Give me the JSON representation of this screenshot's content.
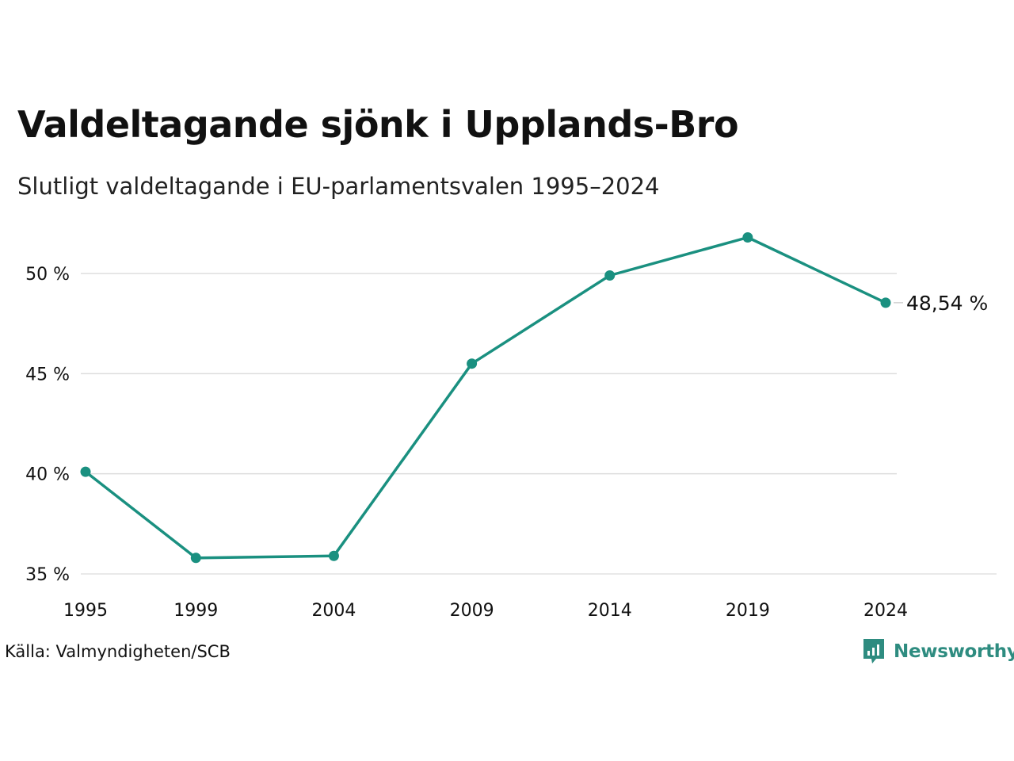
{
  "chart_data": {
    "type": "line",
    "title": "Valdeltagande sjönk i Upplands-Bro",
    "subtitle": "Slutligt valdeltagande i EU-parlamentsvalen 1995–2024",
    "x": [
      1995,
      1999,
      2004,
      2009,
      2014,
      2019,
      2024
    ],
    "x_tick_labels": [
      "1995",
      "1999",
      "2004",
      "2009",
      "2014",
      "2019",
      "2024"
    ],
    "series": [
      {
        "values": [
          40.1,
          35.8,
          35.9,
          45.5,
          49.9,
          51.8,
          48.54
        ],
        "color": "#1a9080"
      }
    ],
    "y_ticks": [
      35,
      40,
      45,
      50
    ],
    "y_tick_labels": [
      "35 %",
      "40 %",
      "45 %",
      "50 %"
    ],
    "ylim": [
      35,
      52
    ],
    "grid": true,
    "end_label": "48,54 %"
  },
  "source": "Källa: Valmyndigheten/SCB",
  "brand": {
    "name": "Newsworthy",
    "icon": "newsworthy-logo-icon",
    "color": "#2e8c80"
  }
}
